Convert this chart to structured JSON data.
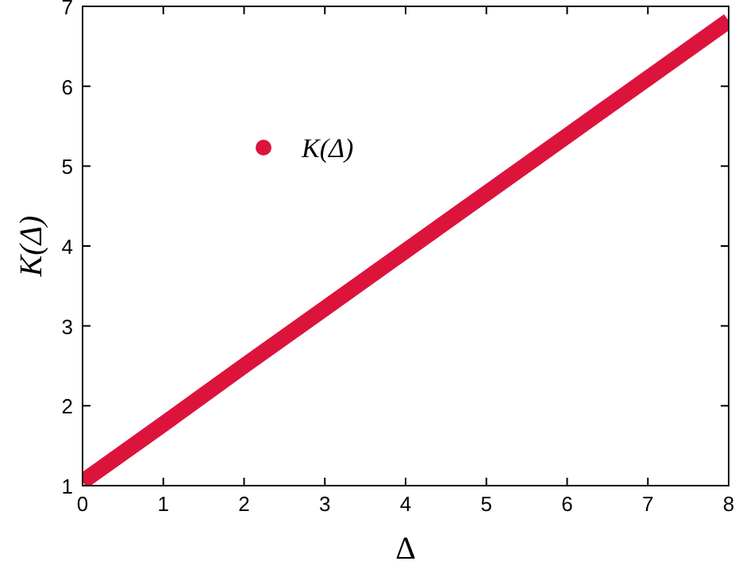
{
  "chart_data": {
    "type": "line",
    "xlabel": "Δ",
    "ylabel": "K(Δ)",
    "x": [
      0,
      1,
      2,
      3,
      4,
      5,
      6,
      7,
      8
    ],
    "series": [
      {
        "name": "K(Δ)",
        "color": "#dc143c",
        "values": [
          1.05,
          1.77,
          2.5,
          3.22,
          3.94,
          4.66,
          5.38,
          6.1,
          6.82
        ]
      }
    ],
    "xlim": [
      0,
      8
    ],
    "ylim": [
      1,
      7
    ],
    "xticks": [
      0,
      1,
      2,
      3,
      4,
      5,
      6,
      7,
      8
    ],
    "yticks": [
      1,
      2,
      3,
      4,
      5,
      6,
      7
    ],
    "grid": false,
    "legend": "top left",
    "line_style": "solid"
  }
}
